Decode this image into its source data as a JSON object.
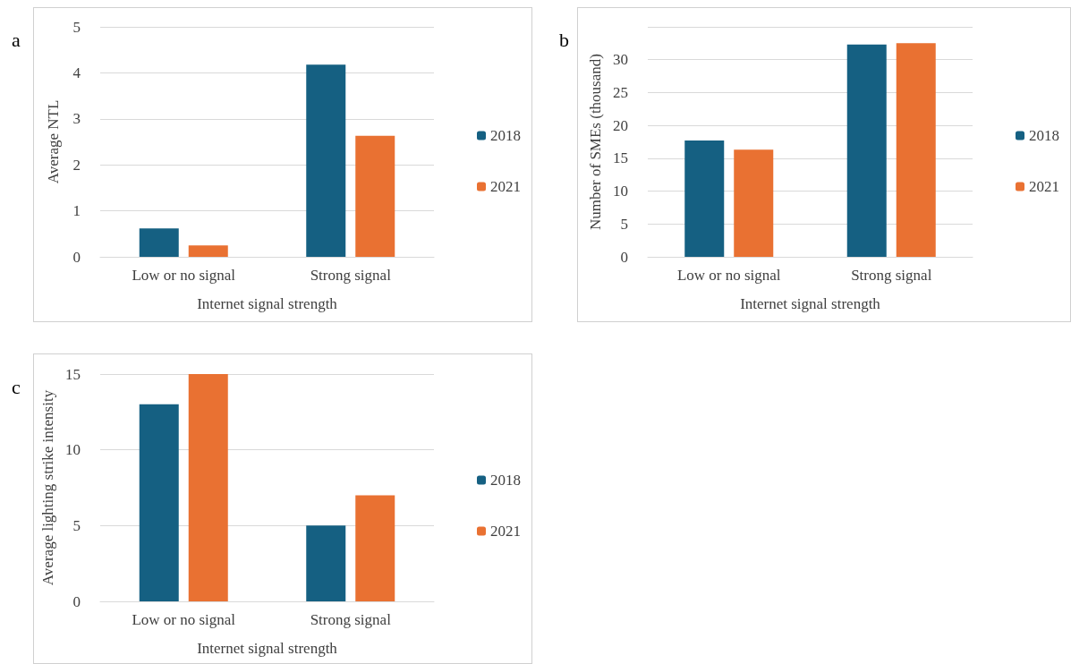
{
  "chart_data": [
    {
      "type": "bar",
      "title": "a",
      "xlabel": "Internet signal strength",
      "ylabel": "Average NTL",
      "categories": [
        "Low or no signal",
        "Strong signal"
      ],
      "series": [
        {
          "name": "2018",
          "color": "#156082",
          "values": [
            0.62,
            4.18
          ]
        },
        {
          "name": "2021",
          "color": "#e97132",
          "values": [
            0.25,
            2.63
          ]
        }
      ],
      "ylim": [
        0,
        5
      ],
      "yticks": [
        0,
        1,
        2,
        3,
        4,
        5
      ],
      "grid": "y",
      "legend": "right"
    },
    {
      "type": "bar",
      "title": "b",
      "xlabel": "Internet signal strength",
      "ylabel": "Number of SMEs (thousand)",
      "categories": [
        "Low or no signal",
        "Strong signal"
      ],
      "series": [
        {
          "name": "2018",
          "color": "#156082",
          "values": [
            17.7,
            32.3
          ]
        },
        {
          "name": "2021",
          "color": "#e97132",
          "values": [
            16.3,
            32.5
          ]
        }
      ],
      "ylim": [
        0,
        35
      ],
      "yticks": [
        0,
        5,
        10,
        15,
        20,
        25,
        30,
        {
          "value": 35,
          "label": null
        }
      ],
      "grid": "y",
      "legend": "right"
    },
    {
      "type": "bar",
      "title": "c",
      "xlabel": "Internet signal strength",
      "ylabel": "Average lighting strike intensity",
      "categories": [
        "Low or no signal",
        "Strong signal"
      ],
      "series": [
        {
          "name": "2018",
          "color": "#156082",
          "values": [
            13,
            5
          ]
        },
        {
          "name": "2021",
          "color": "#e97132",
          "values": [
            15,
            7
          ]
        }
      ],
      "ylim": [
        0,
        15
      ],
      "yticks": [
        0,
        5,
        10,
        15
      ],
      "grid": "y",
      "legend": "right"
    }
  ]
}
